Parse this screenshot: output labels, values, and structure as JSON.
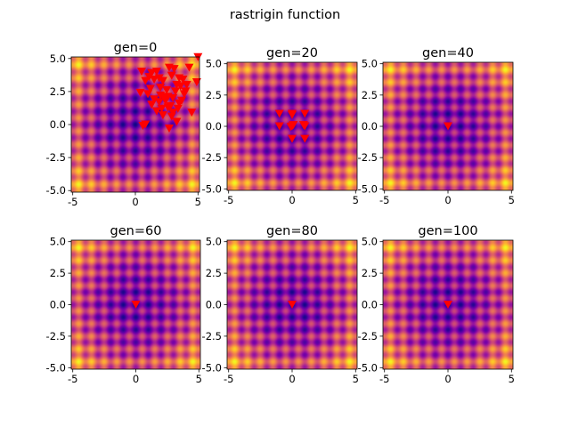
{
  "suptitle": "rastrigin function",
  "chart_data": [
    {
      "type": "heatmap",
      "title": "gen=0",
      "function": "rastrigin",
      "colormap": "plasma",
      "xlim": [
        -5.12,
        5.12
      ],
      "ylim": [
        -5.12,
        5.12
      ],
      "xticks": [
        "-5",
        "0",
        "5"
      ],
      "yticks": [
        "5.0",
        "2.5",
        "0.0",
        "-2.5",
        "-5.0"
      ],
      "marker": "v",
      "marker_color": "#ff0000",
      "points": [
        [
          0.4,
          2.4
        ],
        [
          0.8,
          0.0
        ],
        [
          0.6,
          -0.1
        ],
        [
          0.5,
          4.0
        ],
        [
          0.8,
          3.3
        ],
        [
          1.0,
          2.3
        ],
        [
          1.1,
          3.6
        ],
        [
          1.3,
          3.9
        ],
        [
          1.5,
          3.4
        ],
        [
          1.7,
          4.0
        ],
        [
          1.9,
          3.5
        ],
        [
          2.0,
          2.8
        ],
        [
          2.2,
          3.3
        ],
        [
          2.3,
          2.1
        ],
        [
          2.5,
          2.6
        ],
        [
          2.7,
          4.3
        ],
        [
          2.9,
          3.7
        ],
        [
          3.1,
          4.2
        ],
        [
          3.3,
          3.0
        ],
        [
          3.5,
          3.5
        ],
        [
          3.2,
          2.5
        ],
        [
          3.6,
          2.9
        ],
        [
          3.8,
          3.4
        ],
        [
          3.9,
          2.3
        ],
        [
          4.1,
          3.0
        ],
        [
          4.0,
          2.5
        ],
        [
          3.7,
          1.8
        ],
        [
          2.8,
          1.4
        ],
        [
          2.4,
          1.8
        ],
        [
          2.1,
          1.2
        ],
        [
          1.9,
          1.7
        ],
        [
          1.5,
          1.9
        ],
        [
          1.3,
          1.5
        ],
        [
          1.7,
          1.0
        ],
        [
          2.6,
          1.3
        ],
        [
          3.4,
          1.2
        ],
        [
          3.0,
          0.9
        ],
        [
          2.2,
          0.7
        ],
        [
          2.9,
          0.6
        ],
        [
          3.3,
          0.2
        ],
        [
          2.7,
          -0.3
        ],
        [
          4.5,
          0.9
        ],
        [
          4.3,
          4.3
        ],
        [
          4.9,
          3.2
        ],
        [
          5.0,
          5.1
        ],
        [
          3.0,
          2.0
        ],
        [
          2.0,
          2.2
        ],
        [
          2.6,
          2.1
        ],
        [
          3.5,
          1.6
        ],
        [
          1.2,
          2.7
        ]
      ]
    },
    {
      "type": "heatmap",
      "title": "gen=20",
      "function": "rastrigin",
      "colormap": "plasma",
      "xlim": [
        -5.12,
        5.12
      ],
      "ylim": [
        -5.12,
        5.12
      ],
      "xticks": [
        "-5",
        "0",
        "5"
      ],
      "yticks": [
        "5.0",
        "2.5",
        "0.0",
        "-2.5",
        "-5.0"
      ],
      "marker": "v",
      "marker_color": "#ff0000",
      "points": [
        [
          -1,
          1
        ],
        [
          0,
          1
        ],
        [
          1,
          1
        ],
        [
          -1,
          0
        ],
        [
          0,
          0
        ],
        [
          1,
          0
        ],
        [
          0,
          -1
        ],
        [
          1,
          -1
        ],
        [
          0,
          0.9
        ],
        [
          0.1,
          0.1
        ],
        [
          0.9,
          0.1
        ],
        [
          -0.1,
          -0.05
        ]
      ]
    },
    {
      "type": "heatmap",
      "title": "gen=40",
      "function": "rastrigin",
      "colormap": "plasma",
      "xlim": [
        -5.12,
        5.12
      ],
      "ylim": [
        -5.12,
        5.12
      ],
      "xticks": [
        "-5",
        "0",
        "5"
      ],
      "yticks": [
        "5.0",
        "2.5",
        "0.0",
        "-2.5",
        "-5.0"
      ],
      "marker": "v",
      "marker_color": "#ff0000",
      "points": [
        [
          0,
          0
        ]
      ]
    },
    {
      "type": "heatmap",
      "title": "gen=60",
      "function": "rastrigin",
      "colormap": "plasma",
      "xlim": [
        -5.12,
        5.12
      ],
      "ylim": [
        -5.12,
        5.12
      ],
      "xticks": [
        "-5",
        "0",
        "5"
      ],
      "yticks": [
        "5.0",
        "2.5",
        "0.0",
        "-2.5",
        "-5.0"
      ],
      "marker": "v",
      "marker_color": "#ff0000",
      "points": [
        [
          0,
          0
        ]
      ]
    },
    {
      "type": "heatmap",
      "title": "gen=80",
      "function": "rastrigin",
      "colormap": "plasma",
      "xlim": [
        -5.12,
        5.12
      ],
      "ylim": [
        -5.12,
        5.12
      ],
      "xticks": [
        "-5",
        "0",
        "5"
      ],
      "yticks": [
        "5.0",
        "2.5",
        "0.0",
        "-2.5",
        "-5.0"
      ],
      "marker": "v",
      "marker_color": "#ff0000",
      "points": [
        [
          0,
          0
        ]
      ]
    },
    {
      "type": "heatmap",
      "title": "gen=100",
      "function": "rastrigin",
      "colormap": "plasma",
      "xlim": [
        -5.12,
        5.12
      ],
      "ylim": [
        -5.12,
        5.12
      ],
      "xticks": [
        "-5",
        "0",
        "5"
      ],
      "yticks": [
        "5.0",
        "2.5",
        "0.0",
        "-2.5",
        "-5.0"
      ],
      "marker": "v",
      "marker_color": "#ff0000",
      "points": [
        [
          0,
          0
        ]
      ]
    }
  ]
}
